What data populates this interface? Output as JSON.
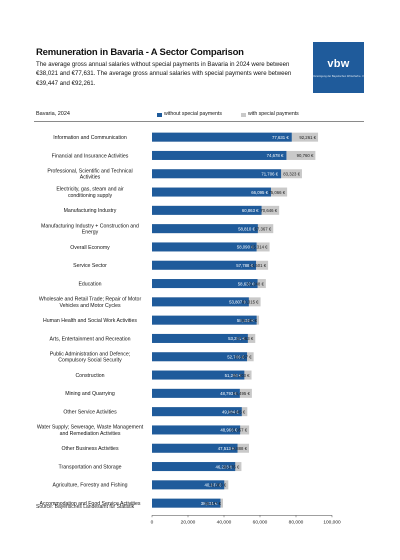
{
  "header": {
    "title": "Remuneration in Bavaria  - A Sector Comparison",
    "subtitle": "The average gross annual salaries without special payments in Bavaria in 2024 were between €38,021 and €77,631. The average gross annual salaries with special payments were between €39,447 and €92,261."
  },
  "logo": {
    "text": "vbw",
    "subtext": "Vereinigung der Bayerischen Wirtschaft e. V."
  },
  "panel_label": "Bavaria, 2024",
  "source": "Source: Bayerisches Landesamt für Statistik",
  "colors": {
    "without": "#1f5b9b",
    "with": "#c9c9c9",
    "brand": "#1f5b9b"
  },
  "chart_data": {
    "type": "bar",
    "orientation": "horizontal",
    "barmode": "overlay",
    "categories": [
      "Information and Communication",
      "Financial and Insurance Activities",
      "Professional, Scientific and Technical Activities",
      "Electricity, gas, steam and air conditioning supply",
      "Manufacturing Industry",
      "Manufacturing Industry + Construction and Energy",
      "Overall Economy",
      "Service Sector",
      "Education",
      "Wholesale and Retail Trade; Repair of Motor Vehicles and Motor Cycles",
      "Human Health and Social Work Activities",
      "Arts, Entertainment and Recreation",
      "Public Administration and Defence; Compulsory Social Security",
      "Construction",
      "Mining and Quarrying",
      "Other Service Activities",
      "Water Supply; Sewerage, Waste Management and Remediation Activities",
      "Other Business Activities",
      "Transportation and Storage",
      "Agriculture, Forestry and Fishing",
      "Accommodation and Food Service Activities"
    ],
    "series": [
      {
        "name": "without special payments",
        "values": [
          77631,
          74678,
          71706,
          66095,
          60863,
          58810,
          58090,
          57788,
          58637,
          53807,
          58132,
          53251,
          52795,
          51294,
          48793,
          49884,
          48965,
          47513,
          46228,
          40137,
          38021
        ],
        "labels": [
          "77,631 €",
          "74,678 €",
          "71,706 €",
          "66,095 €",
          "60,863 €",
          "58,810 €",
          "58,090 €",
          "57,788 €",
          "58,637 €",
          "53,807 €",
          "58,132 €",
          "53,251 €",
          "52,795 €",
          "51,294 €",
          "48,793 €",
          "49,884 €",
          "48,965 €",
          "47,513 €",
          "46,228 €",
          "40,137 €",
          "38,021 €"
        ]
      },
      {
        "name": "with special payments",
        "values": [
          92261,
          90760,
          83323,
          75066,
          70646,
          67367,
          65314,
          64501,
          63248,
          60315,
          59480,
          57363,
          56467,
          55303,
          55495,
          52945,
          53957,
          53888,
          49676,
          42383,
          39447
        ],
        "labels": [
          "92,261 €",
          "90,760 €",
          "83,323 €",
          "75,066 €",
          "70,646 €",
          "67,367 €",
          "65,314 €",
          "64,501 €",
          "63,248 €",
          "60,315 €",
          "59,480 €",
          "57,363 €",
          "56,467 €",
          "55,303 €",
          "55,495 €",
          "52,945 €",
          "53,957 €",
          "53,888 €",
          "49,676 €",
          "42,383 €",
          "39,447 €"
        ]
      }
    ],
    "xlim": [
      0,
      100000
    ],
    "xticks": [
      0,
      20000,
      40000,
      60000,
      80000,
      100000
    ],
    "xtick_labels": [
      "0",
      "20,000",
      "40,000",
      "60,000",
      "80,000",
      "100,000"
    ],
    "xlabel": "",
    "ylabel": "",
    "grid": false,
    "legend_position": "top"
  }
}
